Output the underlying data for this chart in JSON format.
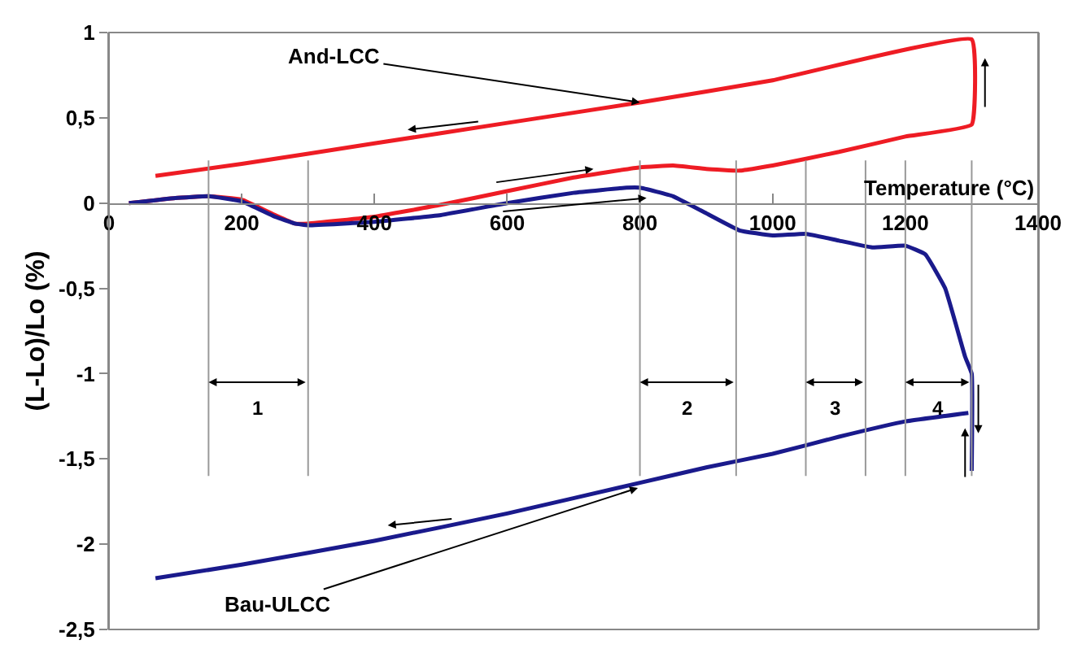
{
  "chart_data": {
    "type": "line",
    "xlabel": "Temperature (°C)",
    "ylabel": "(L-Lo)/Lo (%)",
    "xlim": [
      0,
      1400
    ],
    "xticks": [
      0,
      200,
      400,
      600,
      800,
      1000,
      1200,
      1400
    ],
    "ylim": [
      -2.5,
      1
    ],
    "yticks": [
      {
        "value": -2.5,
        "label": "-2,5"
      },
      {
        "value": -2,
        "label": "-2"
      },
      {
        "value": -1.5,
        "label": "-1,5"
      },
      {
        "value": -1,
        "label": "-1"
      },
      {
        "value": -0.5,
        "label": "-0,5"
      },
      {
        "value": 0,
        "label": "0"
      },
      {
        "value": 0.5,
        "label": "0,5"
      },
      {
        "value": 1,
        "label": "1"
      }
    ],
    "series": [
      {
        "name": "And-LCC",
        "color": "#ee1c24",
        "x": [
          30,
          100,
          150,
          200,
          250,
          280,
          300,
          400,
          500,
          600,
          700,
          800,
          850,
          900,
          950,
          1000,
          1100,
          1200,
          1300,
          1300,
          1000,
          800,
          600,
          400,
          200,
          70
        ],
        "values": [
          0,
          0.03,
          0.04,
          0.02,
          -0.07,
          -0.12,
          -0.12,
          -0.08,
          -0.01,
          0.07,
          0.15,
          0.21,
          0.22,
          0.2,
          0.19,
          0.22,
          0.3,
          0.39,
          0.46,
          0.96,
          0.72,
          0.59,
          0.47,
          0.35,
          0.23,
          0.16
        ]
      },
      {
        "name": "Bau-ULCC",
        "color": "#1a1a8c",
        "x": [
          30,
          100,
          150,
          200,
          250,
          280,
          300,
          400,
          500,
          600,
          700,
          780,
          800,
          850,
          900,
          950,
          1000,
          1050,
          1100,
          1150,
          1200,
          1230,
          1260,
          1290,
          1300,
          1300,
          null,
          1295,
          1200,
          1100,
          1000,
          900,
          800,
          600,
          400,
          200,
          70
        ],
        "values": [
          0,
          0.03,
          0.04,
          0.01,
          -0.08,
          -0.12,
          -0.13,
          -0.11,
          -0.07,
          0,
          0.06,
          0.09,
          0.09,
          0.04,
          -0.06,
          -0.16,
          -0.19,
          -0.18,
          -0.22,
          -0.26,
          -0.25,
          -0.3,
          -0.5,
          -0.9,
          -1.0,
          -1.57,
          null,
          -1.23,
          -1.28,
          -1.37,
          -1.47,
          -1.55,
          -1.64,
          -1.82,
          -1.98,
          -2.12,
          -2.2
        ]
      }
    ],
    "ref_lines": [
      {
        "axis": "x",
        "value": 150,
        "color": "#999999"
      },
      {
        "axis": "x",
        "value": 300,
        "color": "#999999"
      },
      {
        "axis": "x",
        "value": 800,
        "color": "#999999"
      },
      {
        "axis": "x",
        "value": 945,
        "color": "#999999"
      },
      {
        "axis": "x",
        "value": 1050,
        "color": "#999999"
      },
      {
        "axis": "x",
        "value": 1140,
        "color": "#999999"
      },
      {
        "axis": "x",
        "value": 1200,
        "color": "#999999"
      },
      {
        "axis": "x",
        "value": 1300,
        "color": "#999999"
      }
    ],
    "annotations": [
      "1",
      "2",
      "3",
      "4"
    ],
    "legend": false,
    "marker": "none",
    "line_style": "solid"
  }
}
